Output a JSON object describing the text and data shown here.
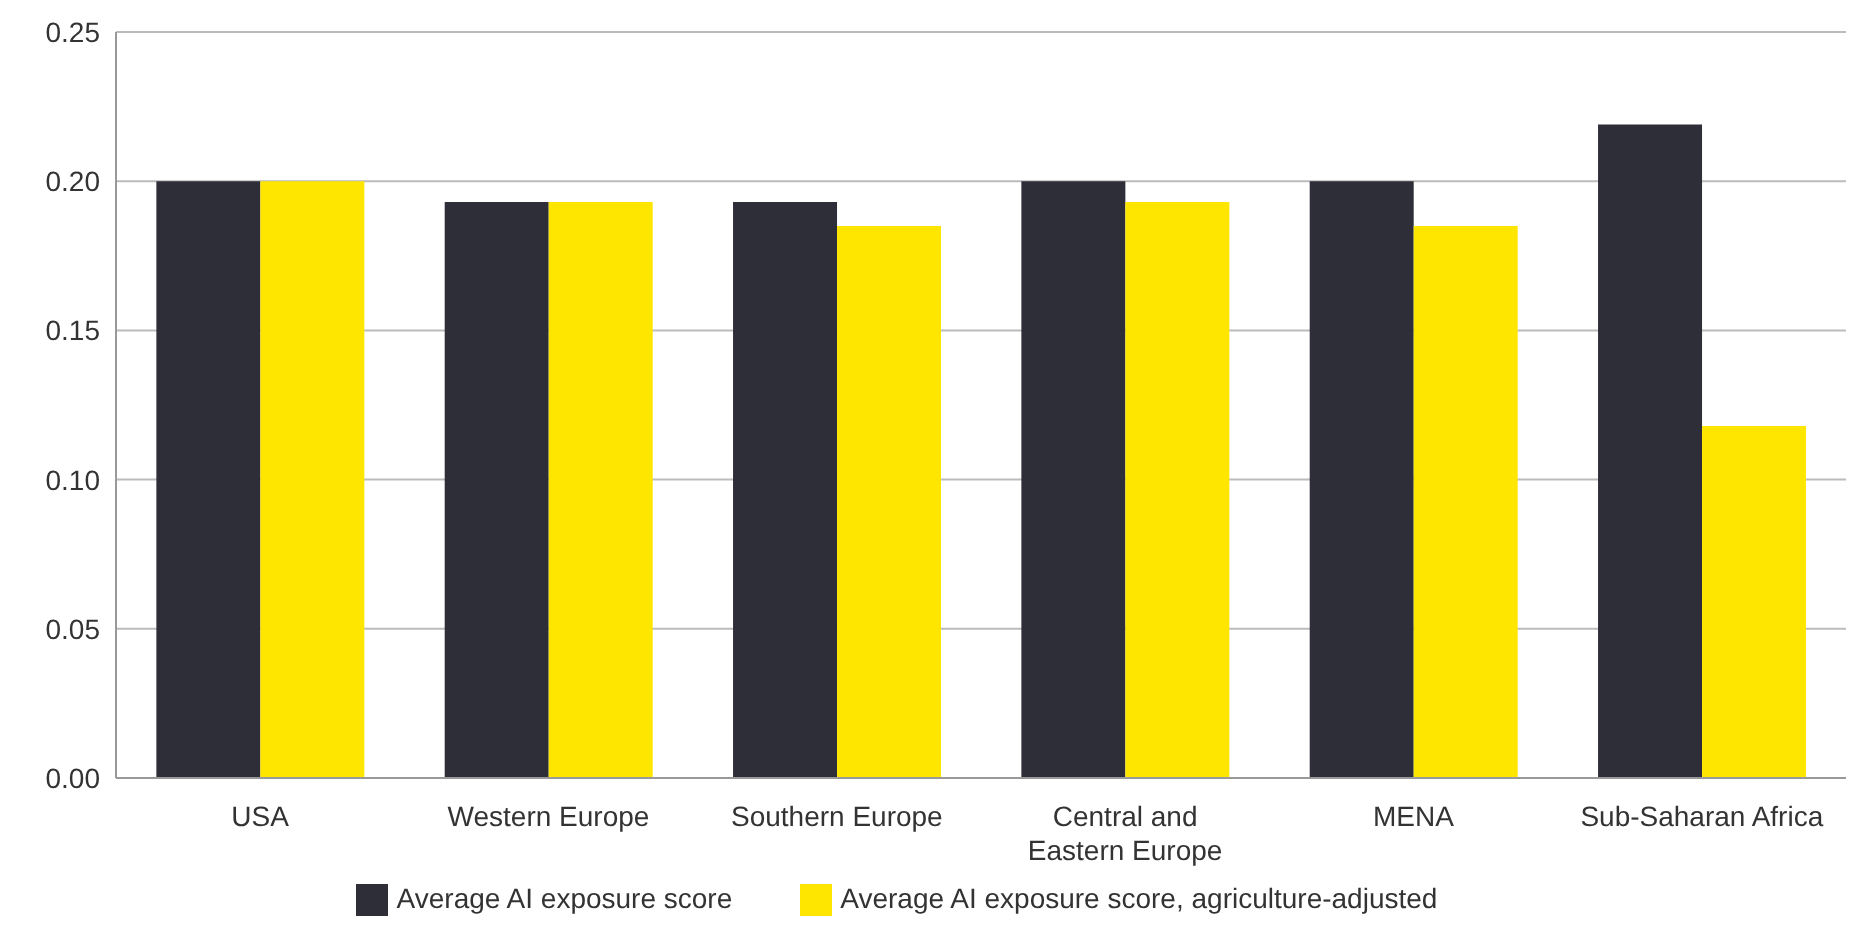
{
  "chart_data": {
    "type": "bar",
    "categories": [
      "USA",
      "Western Europe",
      "Southern Europe",
      "Central and Eastern Europe",
      "MENA",
      "Sub-Saharan Africa"
    ],
    "series": [
      {
        "name": "Average AI exposure score",
        "color": "#2e2e38",
        "values": [
          0.2,
          0.193,
          0.193,
          0.2,
          0.2,
          0.219
        ]
      },
      {
        "name": "Average AI exposure score, agriculture-adjusted",
        "color": "#ffe600",
        "values": [
          0.2,
          0.193,
          0.185,
          0.193,
          0.185,
          0.118
        ]
      }
    ],
    "ylim": [
      0,
      0.25
    ],
    "yticks": [
      {
        "value": 0,
        "label": "0.00"
      },
      0.05,
      {
        "value": 0.1,
        "label": "0.10"
      },
      0.15,
      {
        "value": 0.2,
        "label": "0.20"
      },
      0.25
    ],
    "grid": "y",
    "legend": "bottom"
  }
}
